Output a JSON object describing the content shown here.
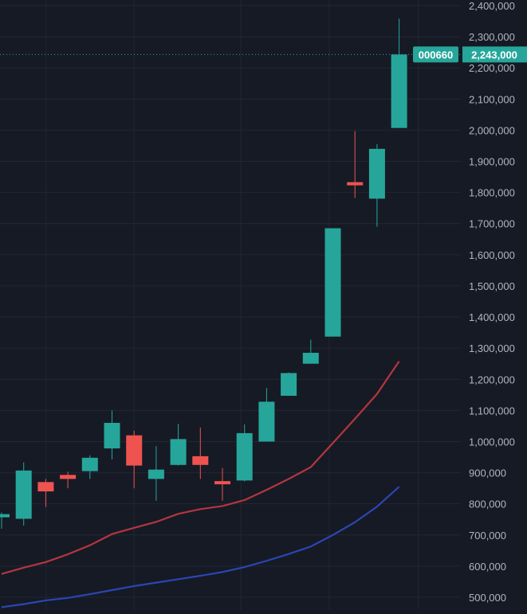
{
  "colors": {
    "background": "#161a25",
    "grid": "#232733",
    "axis_text": "#b2b5be",
    "up": "#26a69a",
    "down": "#ef5350",
    "ma_fast": "#b3363f",
    "ma_slow": "#2b46b3",
    "price_tag_bg": "#26a69a",
    "price_line": "#26a69a"
  },
  "price_tag": {
    "symbol": "000660",
    "value": "2,243,000"
  },
  "chart_data": {
    "type": "candlestick",
    "title": "",
    "xlabel": "",
    "ylabel": "",
    "ylim": [
      478000,
      2420000
    ],
    "y_ticks": [
      500000,
      600000,
      700000,
      800000,
      900000,
      1000000,
      1100000,
      1200000,
      1300000,
      1400000,
      1500000,
      1600000,
      1700000,
      1800000,
      1900000,
      2000000,
      2100000,
      2200000,
      2300000,
      2400000
    ],
    "y_tick_labels": [
      "500,000",
      "600,000",
      "700,000",
      "800,000",
      "900,000",
      "1,000,000",
      "1,100,000",
      "1,200,000",
      "1,300,000",
      "1,400,000",
      "1,500,000",
      "1,600,000",
      "1,700,000",
      "1,800,000",
      "1,900,000",
      "2,000,000",
      "2,100,000",
      "2,200,000",
      "2,300,000",
      "2,400,000"
    ],
    "grid": true,
    "last_price": 2243000,
    "candles": [
      {
        "open": 757000,
        "close": 767000,
        "high": 772000,
        "low": 720000
      },
      {
        "open": 752000,
        "close": 907000,
        "high": 933000,
        "low": 730000
      },
      {
        "open": 870000,
        "close": 840000,
        "high": 880000,
        "low": 790000
      },
      {
        "open": 893000,
        "close": 880000,
        "high": 903000,
        "low": 850000
      },
      {
        "open": 905000,
        "close": 948000,
        "high": 956000,
        "low": 880000
      },
      {
        "open": 978000,
        "close": 1060000,
        "high": 1100000,
        "low": 943000
      },
      {
        "open": 1020000,
        "close": 923000,
        "high": 1035000,
        "low": 850000
      },
      {
        "open": 880000,
        "close": 910000,
        "high": 985000,
        "low": 810000
      },
      {
        "open": 925000,
        "close": 1008000,
        "high": 1057000,
        "low": 923000
      },
      {
        "open": 953000,
        "close": 925000,
        "high": 1045000,
        "low": 880000
      },
      {
        "open": 873000,
        "close": 865000,
        "high": 915000,
        "low": 810000
      },
      {
        "open": 875000,
        "close": 1027000,
        "high": 1055000,
        "low": 872000
      },
      {
        "open": 1000000,
        "close": 1128000,
        "high": 1172000,
        "low": 1000000
      },
      {
        "open": 1147000,
        "close": 1220000,
        "high": 1222000,
        "low": 1147000
      },
      {
        "open": 1250000,
        "close": 1285000,
        "high": 1327000,
        "low": 1250000
      },
      {
        "open": 1337000,
        "close": 1685000,
        "high": 1685000,
        "low": 1337000
      },
      {
        "open": 1833000,
        "close": 1826000,
        "high": 1997000,
        "low": 1782000
      },
      {
        "open": 1780000,
        "close": 1940000,
        "high": 1955000,
        "low": 1690000
      },
      {
        "open": 2007000,
        "close": 2243000,
        "high": 2358000,
        "low": 2007000
      }
    ],
    "series": [
      {
        "values": [
          575000,
          595000,
          613000,
          638000,
          667000,
          703000,
          723000,
          742000,
          768000,
          783000,
          793000,
          812000,
          845000,
          880000,
          918000,
          995000,
          1073000,
          1153000,
          1258000
        ],
        "color": "#b3363f"
      },
      {
        "values": [
          468000,
          478000,
          490000,
          498000,
          510000,
          523000,
          536000,
          547000,
          558000,
          569000,
          581000,
          597000,
          617000,
          639000,
          663000,
          700000,
          741000,
          791000,
          855000
        ],
        "color": "#2b46b3"
      }
    ]
  }
}
